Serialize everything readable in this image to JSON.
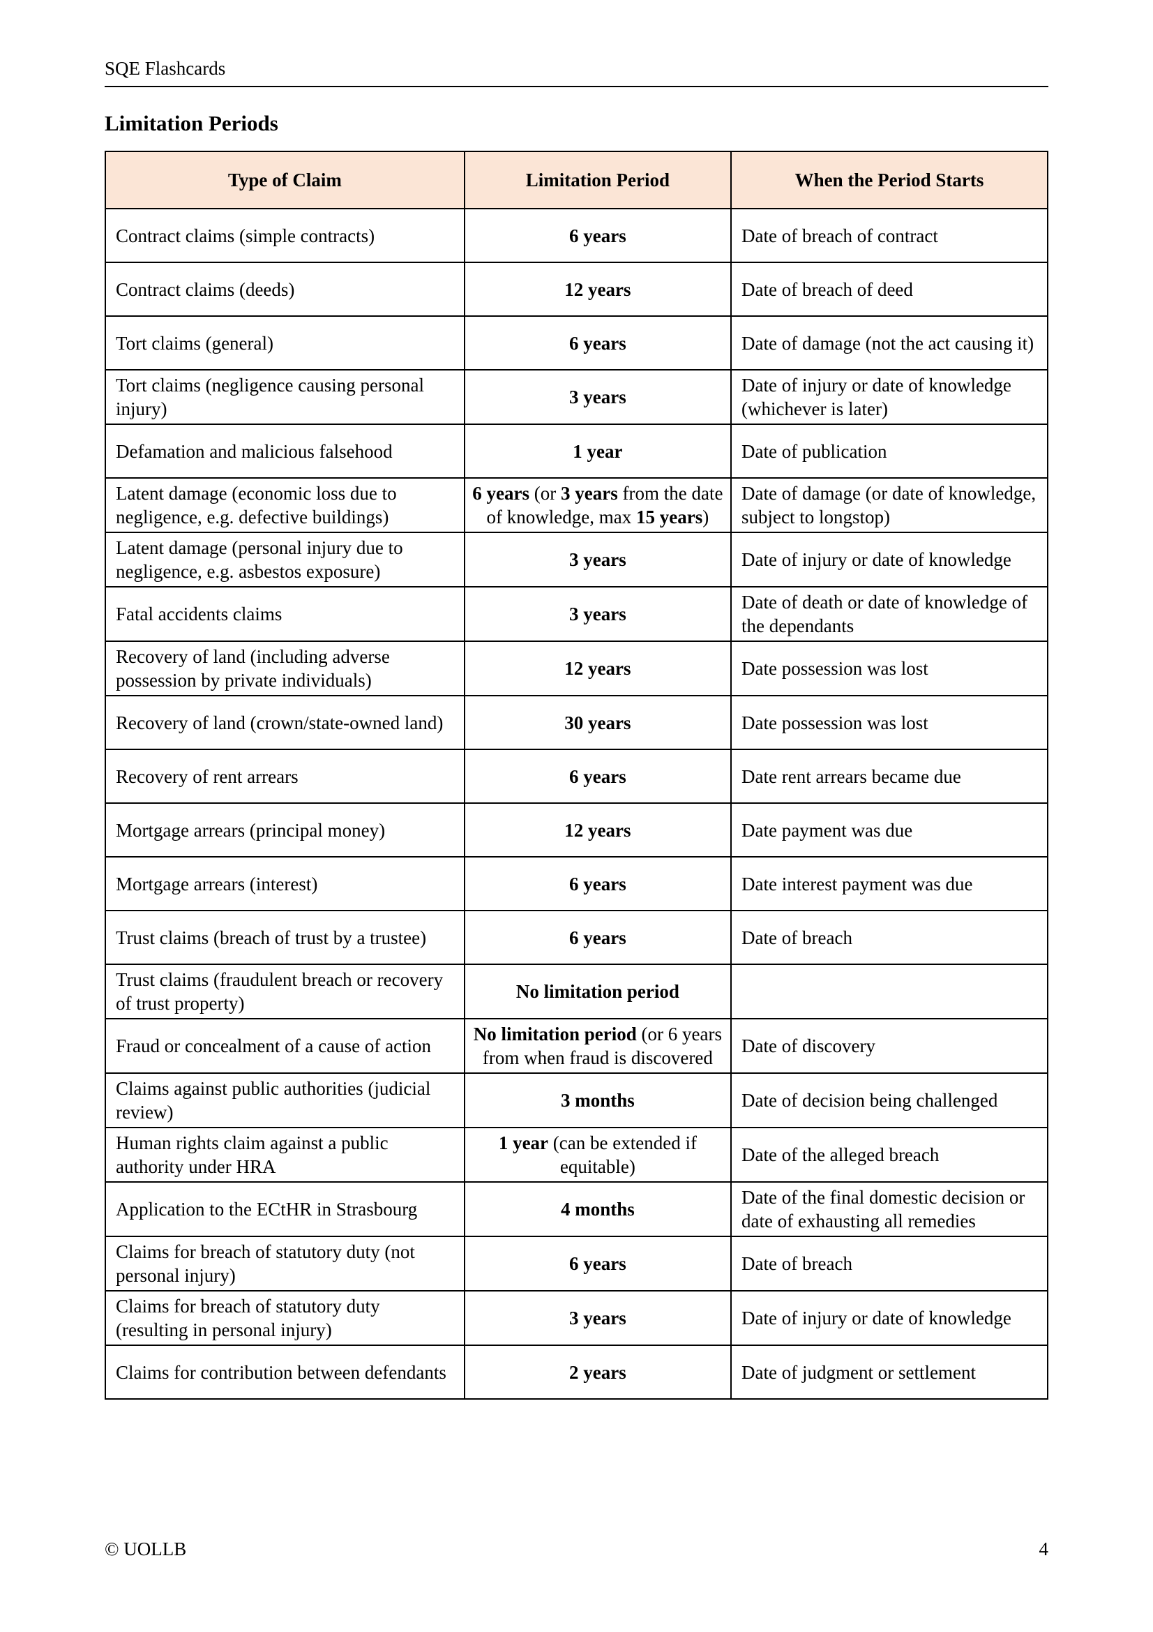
{
  "header": {
    "running_title": "SQE Flashcards"
  },
  "page": {
    "section_title": "Limitation Periods"
  },
  "table": {
    "header_bg": "#fbe5d6",
    "columns": [
      "Type of Claim",
      "Limitation Period",
      "When the Period Starts"
    ],
    "rows": [
      {
        "claim": "Contract claims (simple contracts)",
        "period": [
          {
            "t": "6 years",
            "b": true
          }
        ],
        "starts": "Date of breach of contract"
      },
      {
        "claim": "Contract claims (deeds)",
        "period": [
          {
            "t": "12 years",
            "b": true
          }
        ],
        "starts": "Date of breach of deed"
      },
      {
        "claim": "Tort claims (general)",
        "period": [
          {
            "t": "6 years",
            "b": true
          }
        ],
        "starts": "Date of damage (not the act causing it)"
      },
      {
        "claim": "Tort claims (negligence causing personal injury)",
        "period": [
          {
            "t": "3 years",
            "b": true
          }
        ],
        "starts": "Date of injury or date of knowledge (whichever is later)"
      },
      {
        "claim": "Defamation and malicious falsehood",
        "period": [
          {
            "t": "1 year",
            "b": true
          }
        ],
        "starts": "Date of publication"
      },
      {
        "claim": "Latent damage (economic loss due to negligence, e.g. defective buildings)",
        "period": [
          {
            "t": "6 years",
            "b": true
          },
          {
            "t": " (or ",
            "b": false
          },
          {
            "t": "3 years",
            "b": true
          },
          {
            "t": " from the date of knowledge, max ",
            "b": false
          },
          {
            "t": "15 years",
            "b": true
          },
          {
            "t": ")",
            "b": false
          }
        ],
        "starts": "Date of damage (or date of knowledge, subject to longstop)"
      },
      {
        "claim": "Latent damage (personal injury due to negligence, e.g. asbestos exposure)",
        "period": [
          {
            "t": "3 years",
            "b": true
          }
        ],
        "starts": "Date of injury or date of knowledge"
      },
      {
        "claim": "Fatal accidents claims",
        "period": [
          {
            "t": "3 years",
            "b": true
          }
        ],
        "starts": "Date of death or date of knowledge of the dependants"
      },
      {
        "claim": "Recovery of land (including adverse possession by private individuals)",
        "period": [
          {
            "t": "12 years",
            "b": true
          }
        ],
        "starts": "Date possession was lost"
      },
      {
        "claim": "Recovery of land (crown/state-owned land)",
        "period": [
          {
            "t": "30 years",
            "b": true
          }
        ],
        "starts": "Date possession was lost"
      },
      {
        "claim": "Recovery of rent arrears",
        "period": [
          {
            "t": "6 years",
            "b": true
          }
        ],
        "starts": "Date rent arrears became due"
      },
      {
        "claim": "Mortgage arrears (principal money)",
        "period": [
          {
            "t": "12 years",
            "b": true
          }
        ],
        "starts": "Date payment was due"
      },
      {
        "claim": "Mortgage arrears (interest)",
        "period": [
          {
            "t": "6 years",
            "b": true
          }
        ],
        "starts": "Date interest payment was due"
      },
      {
        "claim": "Trust claims (breach of trust by a trustee)",
        "period": [
          {
            "t": "6 years",
            "b": true
          }
        ],
        "starts": "Date of breach"
      },
      {
        "claim": "Trust claims (fraudulent breach or recovery of trust property)",
        "period": [
          {
            "t": "No limitation period",
            "b": true
          }
        ],
        "starts": ""
      },
      {
        "claim": "Fraud or concealment of a cause of action",
        "period": [
          {
            "t": "No limitation period",
            "b": true
          },
          {
            "t": " (or 6 years from when fraud is discovered",
            "b": false
          }
        ],
        "starts": "Date of discovery"
      },
      {
        "claim": "Claims against public authorities (judicial review)",
        "period": [
          {
            "t": "3 months",
            "b": true
          }
        ],
        "starts": "Date of decision being challenged"
      },
      {
        "claim": "Human rights claim against a public authority under HRA",
        "period": [
          {
            "t": "1 year",
            "b": true
          },
          {
            "t": " (can be extended if equitable)",
            "b": false
          }
        ],
        "starts": "Date of the alleged breach"
      },
      {
        "claim": "Application to the ECtHR in Strasbourg",
        "period": [
          {
            "t": "4 months",
            "b": true
          }
        ],
        "starts": "Date of the final domestic decision or date of exhausting all remedies"
      },
      {
        "claim": "Claims for breach of statutory duty (not personal injury)",
        "period": [
          {
            "t": "6 years",
            "b": true
          }
        ],
        "starts": "Date of breach"
      },
      {
        "claim": "Claims for breach of statutory duty (resulting in personal injury)",
        "period": [
          {
            "t": "3 years",
            "b": true
          }
        ],
        "starts": "Date of injury or date of knowledge"
      },
      {
        "claim": "Claims for contribution between defendants",
        "period": [
          {
            "t": "2 years",
            "b": true
          }
        ],
        "starts": "Date of judgment or settlement"
      }
    ]
  },
  "footer": {
    "copyright": "© UOLLB",
    "page_number": "4"
  }
}
